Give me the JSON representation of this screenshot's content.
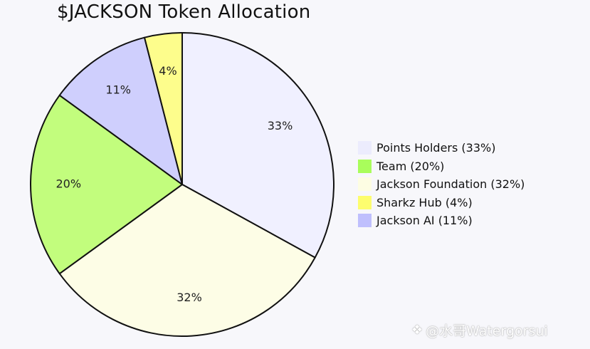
{
  "chart_data": {
    "type": "pie",
    "title": "$JACKSON Token Allocation",
    "slices": [
      {
        "label": "Points Holders",
        "value": 33,
        "color": "#f0f0ff",
        "data_label": "33%",
        "legend_label": "Points Holders (33%)"
      },
      {
        "label": "Jackson Foundation",
        "value": 32,
        "color": "#fdfde6",
        "data_label": "32%",
        "legend_label": "Jackson Foundation (32%)"
      },
      {
        "label": "Team",
        "value": 20,
        "color": "#c2fd7d",
        "data_label": "20%",
        "legend_label": "Team (20%)"
      },
      {
        "label": "Jackson AI",
        "value": 11,
        "color": "#cfcffd",
        "data_label": "11%",
        "legend_label": "Jackson AI (11%)"
      },
      {
        "label": "Sharkz Hub",
        "value": 4,
        "color": "#fdfd8c",
        "data_label": "4%",
        "legend_label": "Sharkz Hub (4%)"
      }
    ],
    "legend": {
      "placement": "right",
      "entries": [
        {
          "label": "Points Holders (33%)",
          "color": "#ececfd"
        },
        {
          "label": "Team (20%)",
          "color": "#a9fd5b"
        },
        {
          "label": "Jackson Foundation (32%)",
          "color": "#fdfde3"
        },
        {
          "label": "Sharkz Hub (4%)",
          "color": "#fdfd6e"
        },
        {
          "label": "Jackson AI (11%)",
          "color": "#bfbffd"
        }
      ]
    }
  },
  "watermark": {
    "text": "@水哥Watergorsui",
    "icon": "diamond-logo-icon"
  }
}
